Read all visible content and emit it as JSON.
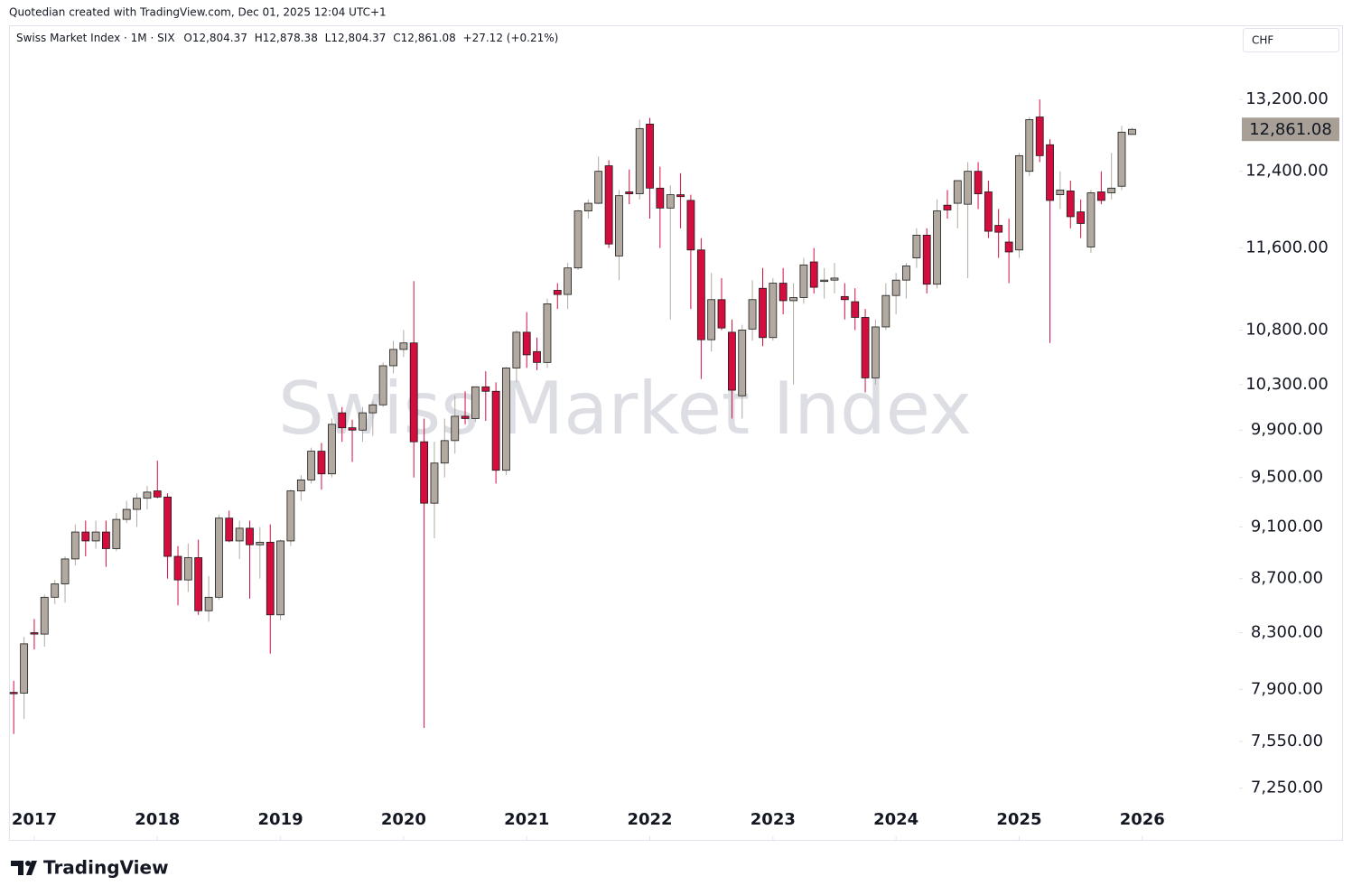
{
  "chart_data": {
    "type": "candlestick",
    "attribution": "Quotedian created with TradingView.com, Dec 01, 2025 12:04 UTC+1",
    "title": "Swiss Market Index",
    "separator": "·",
    "interval": "1M",
    "exchange": "SIX",
    "ohlc_labels": [
      "O12,804.37",
      "H12,878.38",
      "L12,804.37",
      "C12,861.08"
    ],
    "change_label": "+27.12 (+0.21%)",
    "currency": "CHF",
    "last_label": "12,861.08",
    "brand": "TradingView",
    "log_scale": true,
    "up_color": "#b2aaa0",
    "down_color": "#d30d3e",
    "xlim": [
      2016.795,
      2026.772
    ],
    "xticks": [
      2017,
      2018,
      2019,
      2020,
      2021,
      2022,
      2023,
      2024,
      2025,
      2026
    ],
    "ylim": [
      7124,
      14080
    ],
    "yticks": [
      {
        "value": 7250,
        "label": "7,250.00"
      },
      {
        "value": 7550,
        "label": "7,550.00"
      },
      {
        "value": 7900,
        "label": "7,900.00"
      },
      {
        "value": 8300,
        "label": "8,300.00"
      },
      {
        "value": 8700,
        "label": "8,700.00"
      },
      {
        "value": 9100,
        "label": "9,100.00"
      },
      {
        "value": 9500,
        "label": "9,500.00"
      },
      {
        "value": 9900,
        "label": "9,900.00"
      },
      {
        "value": 10300,
        "label": "10,300.00"
      },
      {
        "value": 10800,
        "label": "10,800.00"
      },
      {
        "value": 11600,
        "label": "11,600.00"
      },
      {
        "value": 12400,
        "label": "12,400.00"
      },
      {
        "value": 13200,
        "label": "13,200.00"
      }
    ],
    "x": [
      2016.833,
      2016.917,
      2017,
      2017.083,
      2017.167,
      2017.25,
      2017.333,
      2017.417,
      2017.5,
      2017.583,
      2017.667,
      2017.75,
      2017.833,
      2017.917,
      2018,
      2018.083,
      2018.167,
      2018.25,
      2018.333,
      2018.417,
      2018.5,
      2018.583,
      2018.667,
      2018.75,
      2018.833,
      2018.917,
      2019,
      2019.083,
      2019.167,
      2019.25,
      2019.333,
      2019.417,
      2019.5,
      2019.583,
      2019.667,
      2019.75,
      2019.833,
      2019.917,
      2020,
      2020.083,
      2020.167,
      2020.25,
      2020.333,
      2020.417,
      2020.5,
      2020.583,
      2020.667,
      2020.75,
      2020.833,
      2020.917,
      2021,
      2021.083,
      2021.167,
      2021.25,
      2021.333,
      2021.417,
      2021.5,
      2021.583,
      2021.667,
      2021.75,
      2021.833,
      2021.917,
      2022,
      2022.083,
      2022.167,
      2022.25,
      2022.333,
      2022.417,
      2022.5,
      2022.583,
      2022.667,
      2022.75,
      2022.833,
      2022.917,
      2023,
      2023.083,
      2023.167,
      2023.25,
      2023.333,
      2023.417,
      2023.5,
      2023.583,
      2023.667,
      2023.75,
      2023.833,
      2023.917,
      2024,
      2024.083,
      2024.167,
      2024.25,
      2024.333,
      2024.417,
      2024.5,
      2024.583,
      2024.667,
      2024.75,
      2024.833,
      2024.917,
      2025,
      2025.083,
      2025.167,
      2025.25,
      2025.333,
      2025.417,
      2025.5,
      2025.583,
      2025.667,
      2025.75,
      2025.833,
      2025.917
    ],
    "open": [
      7880,
      7875,
      8300,
      8290,
      8560,
      8660,
      8850,
      9060,
      8990,
      9060,
      8930,
      9160,
      9240,
      9330,
      9390,
      9340,
      8870,
      8690,
      8860,
      8460,
      8560,
      9170,
      8990,
      9090,
      8960,
      8980,
      8430,
      8990,
      9390,
      9480,
      9720,
      9530,
      10050,
      9920,
      9900,
      10050,
      10120,
      10470,
      10620,
      10680,
      9800,
      9290,
      9620,
      9810,
      10020,
      10000,
      10280,
      10240,
      9560,
      10450,
      10780,
      10600,
      10500,
      11180,
      11140,
      11400,
      11980,
      12060,
      12460,
      11520,
      12180,
      12160,
      12920,
      12220,
      12010,
      12150,
      12090,
      11580,
      10710,
      11090,
      10780,
      10200,
      10810,
      11200,
      10730,
      11250,
      11080,
      11110,
      11460,
      11270,
      11280,
      11120,
      11070,
      10920,
      10360,
      10830,
      11130,
      11280,
      11500,
      11730,
      11240,
      12040,
      12060,
      12050,
      12400,
      12180,
      11830,
      11660,
      11580,
      12400,
      13000,
      12690,
      12150,
      12190,
      11970,
      11610,
      12180,
      12170,
      12240,
      12804.37
    ],
    "high": [
      7960,
      8270,
      8400,
      8580,
      8690,
      8870,
      9120,
      9150,
      9150,
      9150,
      9210,
      9310,
      9370,
      9430,
      9640,
      9370,
      8950,
      8970,
      9000,
      8720,
      9200,
      9230,
      9150,
      9150,
      9100,
      9120,
      9000,
      9400,
      9520,
      9750,
      9790,
      10000,
      10100,
      9990,
      10100,
      10150,
      10500,
      10700,
      10800,
      11270,
      10000,
      9800,
      10000,
      10200,
      10240,
      10280,
      10420,
      10320,
      10460,
      10800,
      10970,
      10730,
      11100,
      11250,
      11450,
      11990,
      12100,
      12560,
      12520,
      12200,
      12420,
      12970,
      12990,
      12450,
      12250,
      12380,
      12150,
      11700,
      11350,
      11300,
      10900,
      10850,
      11280,
      11400,
      11300,
      11400,
      11250,
      11500,
      11600,
      11400,
      11450,
      11250,
      11200,
      11000,
      10900,
      11250,
      11350,
      11450,
      11800,
      11800,
      12100,
      12200,
      12300,
      12500,
      12500,
      12300,
      12000,
      11900,
      12600,
      13000,
      13200,
      12750,
      12400,
      12300,
      12100,
      12200,
      12400,
      12600,
      12900,
      12878.38
    ],
    "low": [
      7600,
      7700,
      8180,
      8200,
      8510,
      8520,
      8800,
      8870,
      8930,
      8790,
      8910,
      9130,
      9100,
      9240,
      9330,
      8700,
      8500,
      8600,
      8430,
      8380,
      8540,
      8980,
      8850,
      8550,
      8700,
      8150,
      8390,
      8950,
      9310,
      9450,
      9400,
      9500,
      9800,
      9630,
      9800,
      9850,
      10100,
      10400,
      10550,
      9500,
      7640,
      9010,
      9500,
      9700,
      9950,
      9970,
      9980,
      9450,
      9520,
      10320,
      10450,
      10430,
      10450,
      11000,
      11000,
      11380,
      11900,
      12050,
      11600,
      11280,
      12050,
      12100,
      11900,
      11600,
      10900,
      11800,
      11000,
      10350,
      10600,
      10800,
      10000,
      10000,
      10700,
      10650,
      10700,
      10950,
      10300,
      11050,
      11150,
      11100,
      11150,
      10900,
      10800,
      10230,
      10300,
      10800,
      10950,
      11100,
      11400,
      11150,
      11200,
      11900,
      11800,
      11300,
      12000,
      11700,
      11500,
      11250,
      11500,
      12350,
      12500,
      10680,
      12000,
      11800,
      11700,
      11550,
      12050,
      12100,
      12200,
      12804.37
    ],
    "close": [
      7875,
      8220,
      8290,
      8560,
      8660,
      8850,
      9060,
      8990,
      9060,
      8930,
      9160,
      9240,
      9330,
      9380,
      9340,
      8870,
      8690,
      8860,
      8460,
      8560,
      9170,
      8990,
      9090,
      8960,
      8980,
      8430,
      8990,
      9390,
      9480,
      9720,
      9530,
      9950,
      9920,
      9900,
      10050,
      10120,
      10470,
      10620,
      10680,
      9800,
      9290,
      9620,
      9810,
      10020,
      10000,
      10280,
      10240,
      9560,
      10450,
      10780,
      10570,
      10500,
      11050,
      11140,
      11400,
      11980,
      12060,
      12400,
      11640,
      12140,
      12160,
      12870,
      12220,
      12010,
      12150,
      12130,
      11580,
      10710,
      11090,
      10820,
      10250,
      10800,
      11090,
      10730,
      11250,
      11080,
      11110,
      11430,
      11210,
      11280,
      11300,
      11090,
      10920,
      10360,
      10830,
      11130,
      11280,
      11420,
      11730,
      11240,
      11980,
      11990,
      12300,
      12400,
      12160,
      11770,
      11760,
      11560,
      12570,
      12970,
      12570,
      12090,
      12200,
      11920,
      11850,
      12170,
      12090,
      12220,
      12830,
      12861.08
    ]
  }
}
